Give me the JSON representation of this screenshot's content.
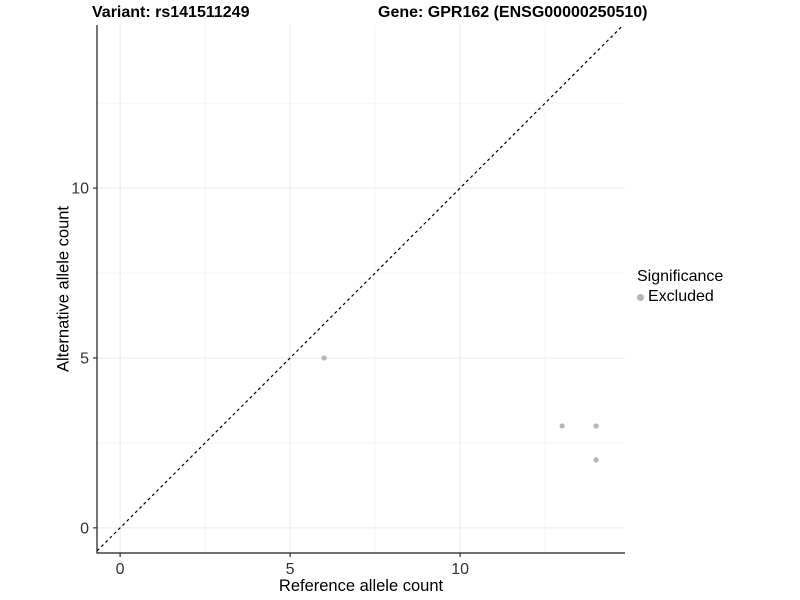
{
  "header": {
    "variant_title": "Variant: rs141511249",
    "gene_title": "Gene: GPR162 (ENSG00000250510)"
  },
  "chart_data": {
    "type": "scatter",
    "title_left": "Variant: rs141511249",
    "title_right": "Gene: GPR162 (ENSG00000250510)",
    "xlabel": "Reference allele count",
    "ylabel": "Alternative allele count",
    "xlim": [
      -0.68,
      14.85
    ],
    "ylim": [
      -0.74,
      14.8
    ],
    "xticks": [
      0,
      5,
      10
    ],
    "yticks": [
      0,
      5,
      10
    ],
    "minor_xticks": [
      2.5,
      7.5,
      12.5
    ],
    "minor_yticks": [
      2.5,
      7.5,
      12.5
    ],
    "grid": true,
    "identity_line": {
      "slope": 1,
      "intercept": 0,
      "style": "dashed",
      "color": "#000000"
    },
    "series": [
      {
        "name": "Excluded",
        "color": "#b5b5b5",
        "points": [
          {
            "x": 6,
            "y": 5
          },
          {
            "x": 13,
            "y": 3
          },
          {
            "x": 14,
            "y": 3
          },
          {
            "x": 14,
            "y": 2
          }
        ]
      }
    ],
    "legend": {
      "title": "Significance",
      "position": "right",
      "entries": [
        {
          "label": "Excluded",
          "color": "#b5b5b5"
        }
      ]
    },
    "colors": {
      "background": "#ffffff",
      "grid_major": "#ebebeb",
      "grid_minor": "#f4f4f4",
      "axis_line": "#1a1a1a",
      "tick_mark": "#333333",
      "tick_label": "#333333",
      "point": "#b5b5b5"
    }
  }
}
